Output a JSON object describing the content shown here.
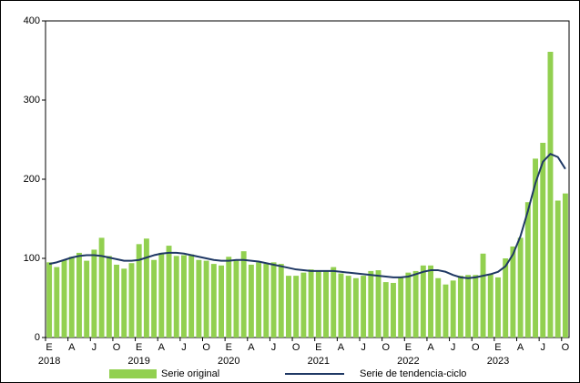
{
  "chart_data": {
    "type": "bar-line",
    "categories": [
      "E",
      null,
      null,
      "A",
      null,
      null,
      "J",
      null,
      null,
      "O",
      null,
      null,
      "E",
      null,
      null,
      "A",
      null,
      null,
      "J",
      null,
      null,
      "O",
      null,
      null,
      "E",
      null,
      null,
      "A",
      null,
      null,
      "J",
      null,
      null,
      "O",
      null,
      null,
      "E",
      null,
      null,
      "A",
      null,
      null,
      "J",
      null,
      null,
      "O",
      null,
      null,
      "E",
      null,
      null,
      "A",
      null,
      null,
      "J",
      null,
      null,
      "O",
      null,
      null,
      "E",
      null,
      null,
      "A",
      null,
      null,
      "J",
      null,
      null,
      "O"
    ],
    "years": [
      "2018",
      null,
      null,
      null,
      null,
      null,
      null,
      null,
      null,
      null,
      null,
      null,
      "2019",
      null,
      null,
      null,
      null,
      null,
      null,
      null,
      null,
      null,
      null,
      null,
      "2020",
      null,
      null,
      null,
      null,
      null,
      null,
      null,
      null,
      null,
      null,
      null,
      "2021",
      null,
      null,
      null,
      null,
      null,
      null,
      null,
      null,
      null,
      null,
      null,
      "2022",
      null,
      null,
      null,
      null,
      null,
      null,
      null,
      null,
      null,
      null,
      null,
      "2023",
      null,
      null,
      null,
      null,
      null,
      null,
      null,
      null,
      null
    ],
    "series": [
      {
        "name": "Serie original",
        "type": "bar",
        "color": "#92d050",
        "values": [
          95,
          89,
          98,
          102,
          107,
          97,
          111,
          126,
          103,
          92,
          87,
          94,
          118,
          125,
          98,
          107,
          116,
          103,
          104,
          105,
          98,
          97,
          93,
          91,
          102,
          98,
          109,
          92,
          95,
          93,
          95,
          93,
          78,
          78,
          82,
          86,
          85,
          85,
          89,
          81,
          78,
          75,
          78,
          84,
          85,
          70,
          69,
          76,
          82,
          84,
          91,
          91,
          75,
          67,
          72,
          78,
          79,
          79,
          106,
          80,
          76,
          100,
          115,
          126,
          171,
          226,
          246,
          361,
          173,
          182
        ]
      },
      {
        "name": "Serie de tendencia-ciclo",
        "type": "line",
        "color": "#1f3864",
        "values": [
          93,
          95,
          98,
          101,
          103,
          104,
          104,
          103,
          101,
          99,
          97,
          97,
          98,
          101,
          104,
          106,
          107,
          107,
          106,
          104,
          102,
          100,
          98,
          97,
          97,
          98,
          98,
          97,
          96,
          94,
          92,
          90,
          88,
          86,
          85,
          84,
          84,
          84,
          84,
          83,
          82,
          81,
          80,
          79,
          78,
          77,
          76,
          76,
          77,
          80,
          83,
          85,
          85,
          83,
          79,
          76,
          75,
          76,
          78,
          80,
          83,
          90,
          105,
          128,
          160,
          195,
          222,
          232,
          228,
          213
        ]
      }
    ],
    "ylim": [
      0,
      400
    ],
    "yticks": [
      0,
      100,
      200,
      300,
      400
    ],
    "grid": false,
    "legend": "bottom"
  }
}
